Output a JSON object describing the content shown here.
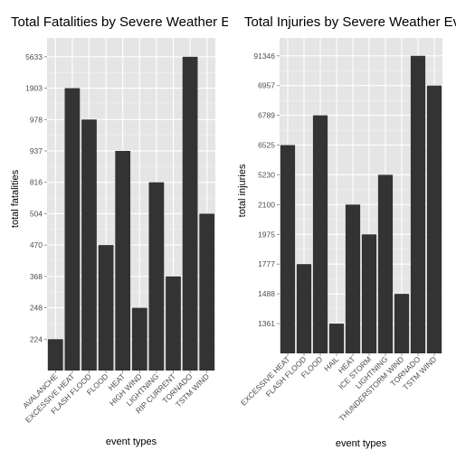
{
  "chart_data": [
    {
      "type": "bar",
      "title": "Total Fatalities by Severe Weather Ev",
      "xlabel": "event types",
      "ylabel": "total fatalities",
      "y_scale": "ordinal",
      "grid": true,
      "y_ticks": [
        "224",
        "248",
        "368",
        "470",
        "504",
        "816",
        "937",
        "978",
        "1903",
        "5633"
      ],
      "categories": [
        "AVALANCHE",
        "EXCESSIVE HEAT",
        "FLASH FLOOD",
        "FLOOD",
        "HEAT",
        "HIGH WIND",
        "LIGHTNING",
        "RIP CURRENT",
        "TORNADO",
        "TSTM WIND"
      ],
      "values": [
        224,
        1903,
        978,
        470,
        937,
        248,
        816,
        368,
        5633,
        504
      ],
      "colors": {
        "panel": "#e5e5e5",
        "grid_major": "#ffffff",
        "grid_minor": "#f2f2f2",
        "bar": "#333333",
        "tick_text": "#4d4d4d"
      }
    },
    {
      "type": "bar",
      "title": "Total Injuries by Severe Weather Ev",
      "xlabel": "event types",
      "ylabel": "total injuries",
      "y_scale": "ordinal",
      "grid": true,
      "y_ticks": [
        "1361",
        "1488",
        "1777",
        "1975",
        "2100",
        "5230",
        "6525",
        "6789",
        "6957",
        "91346"
      ],
      "categories": [
        "EXCESSIVE HEAT",
        "FLASH FLOOD",
        "FLOOD",
        "HAIL",
        "HEAT",
        "ICE STORM",
        "LIGHTNING",
        "THUNDERSTORM WIND",
        "TORNADO",
        "TSTM WIND"
      ],
      "values": [
        6525,
        1777,
        6789,
        1361,
        2100,
        1975,
        5230,
        1488,
        91346,
        6957
      ],
      "colors": {
        "panel": "#e5e5e5",
        "grid_major": "#ffffff",
        "grid_minor": "#f2f2f2",
        "bar": "#333333",
        "tick_text": "#4d4d4d"
      }
    }
  ]
}
